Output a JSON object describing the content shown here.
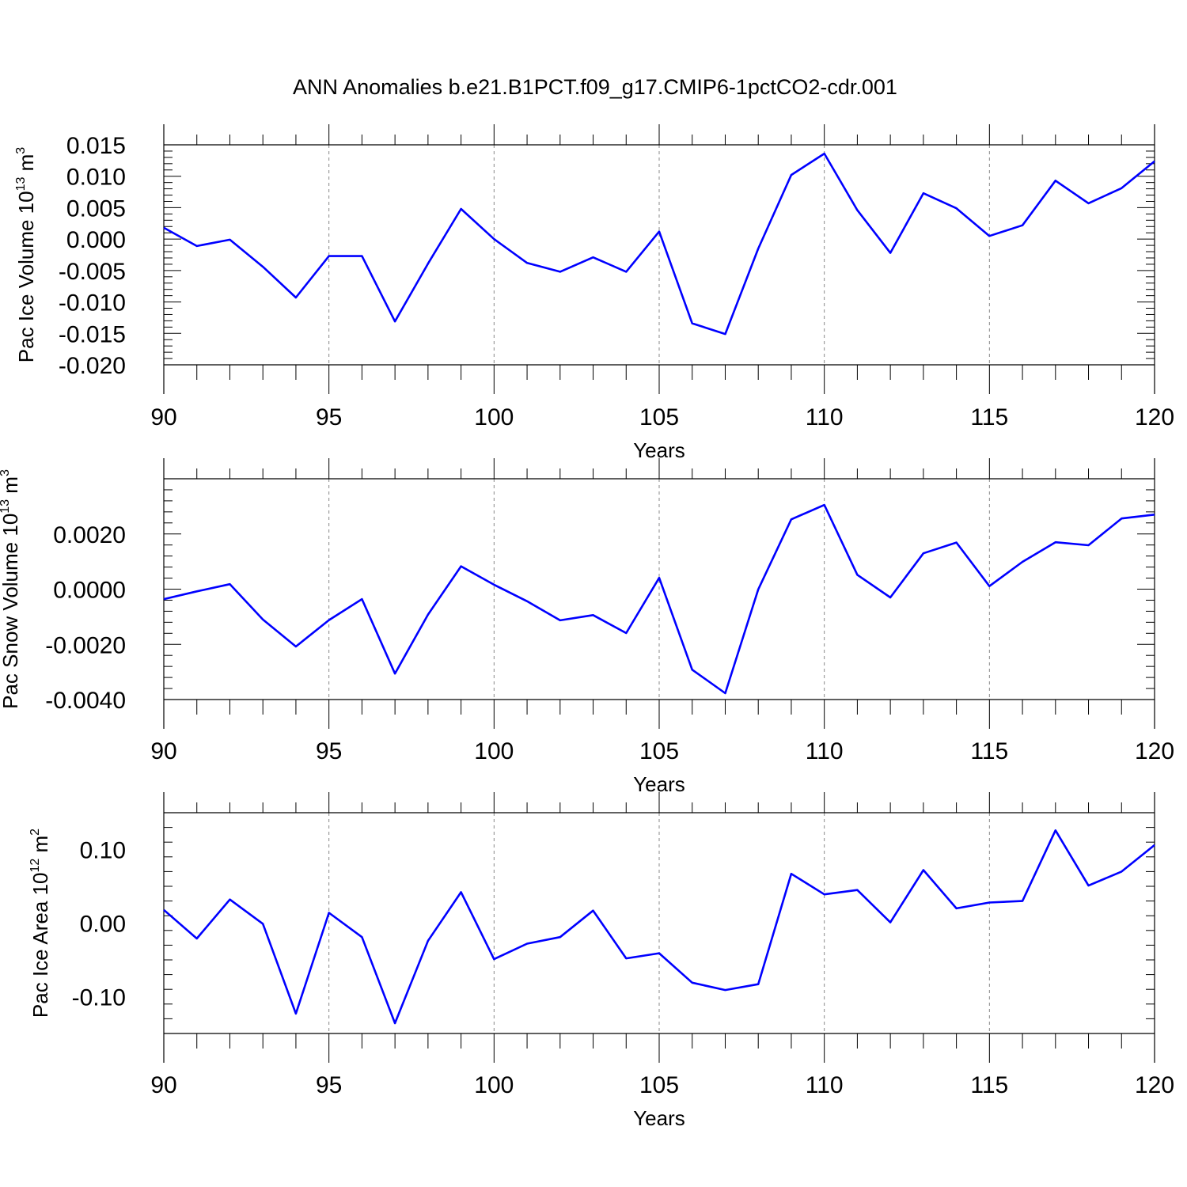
{
  "title": "ANN Anomalies b.e21.B1PCT.f09_g17.CMIP6-1pctCO2-cdr.001",
  "line_color": "#0000ff",
  "chart_data": [
    {
      "type": "line",
      "xlabel": "Years",
      "ylabel": {
        "text": "Pac Ice Volume 10",
        "exp": "13",
        "unit": " m",
        "unit_exp": "3"
      },
      "xlim": [
        90,
        120
      ],
      "ylim": [
        -0.02,
        0.015
      ],
      "x_ticks": [
        "90",
        "95",
        "100",
        "105",
        "110",
        "115",
        "120"
      ],
      "y_ticks": [
        {
          "v": 0.015,
          "label": "0.015"
        },
        {
          "v": 0.01,
          "label": "0.010"
        },
        {
          "v": 0.005,
          "label": "0.005"
        },
        {
          "v": 0.0,
          "label": "0.000"
        },
        {
          "v": -0.005,
          "label": "-0.005"
        },
        {
          "v": -0.01,
          "label": "-0.010"
        },
        {
          "v": -0.015,
          "label": "-0.015"
        },
        {
          "v": -0.02,
          "label": "-0.020"
        }
      ],
      "x": [
        90,
        91,
        92,
        93,
        94,
        95,
        96,
        97,
        98,
        99,
        100,
        101,
        102,
        103,
        104,
        105,
        106,
        107,
        108,
        109,
        110,
        111,
        112,
        113,
        114,
        115,
        116,
        117,
        118,
        119,
        120
      ],
      "values": [
        0.0018,
        -0.0011,
        -0.0001,
        -0.0044,
        -0.0093,
        -0.0027,
        -0.0027,
        -0.0131,
        -0.0039,
        0.0048,
        0.0,
        -0.0038,
        -0.0052,
        -0.0029,
        -0.0052,
        0.0012,
        -0.0134,
        -0.0151,
        -0.0015,
        0.0102,
        0.0136,
        0.0046,
        -0.0022,
        0.0073,
        0.0049,
        0.0005,
        0.0022,
        0.0093,
        0.0057,
        0.0081,
        0.0124
      ]
    },
    {
      "type": "line",
      "xlabel": "Years",
      "ylabel": {
        "text": "Pac Snow Volume 10",
        "exp": "13",
        "unit": " m",
        "unit_exp": "3"
      },
      "xlim": [
        90,
        120
      ],
      "ylim": [
        -0.004,
        0.004
      ],
      "x_ticks": [
        "90",
        "95",
        "100",
        "105",
        "110",
        "115",
        "120"
      ],
      "y_ticks": [
        {
          "v": 0.002,
          "label": "0.0020"
        },
        {
          "v": 0.0,
          "label": "0.0000"
        },
        {
          "v": -0.002,
          "label": "-0.0020"
        },
        {
          "v": -0.004,
          "label": "-0.0040"
        }
      ],
      "x": [
        90,
        91,
        92,
        93,
        94,
        95,
        96,
        97,
        98,
        99,
        100,
        101,
        102,
        103,
        104,
        105,
        106,
        107,
        108,
        109,
        110,
        111,
        112,
        113,
        114,
        115,
        116,
        117,
        118,
        119,
        120
      ],
      "values": [
        -0.00036,
        -8e-05,
        0.00018,
        -0.0011,
        -0.00208,
        -0.00112,
        -0.00036,
        -0.00306,
        -0.00092,
        0.00083,
        0.00016,
        -0.00044,
        -0.00113,
        -0.00094,
        -0.00159,
        0.00041,
        -0.00292,
        -0.00377,
        -1e-05,
        0.00253,
        0.00305,
        0.00052,
        -0.0003,
        0.0013,
        0.00169,
        0.00011,
        0.00099,
        0.0017,
        0.00159,
        0.00256,
        0.0027
      ]
    },
    {
      "type": "line",
      "xlabel": "Years",
      "ylabel": {
        "text": "Pac Ice Area 10",
        "exp": "12",
        "unit": " m",
        "unit_exp": "2"
      },
      "xlim": [
        90,
        120
      ],
      "ylim": [
        -0.15,
        0.15
      ],
      "x_ticks": [
        "90",
        "95",
        "100",
        "105",
        "110",
        "115",
        "120"
      ],
      "y_ticks": [
        {
          "v": 0.1,
          "label": "0.10"
        },
        {
          "v": 0.0,
          "label": "0.00"
        },
        {
          "v": -0.1,
          "label": "-0.10"
        }
      ],
      "x": [
        90,
        91,
        92,
        93,
        94,
        95,
        96,
        97,
        98,
        99,
        100,
        101,
        102,
        103,
        104,
        105,
        106,
        107,
        108,
        109,
        110,
        111,
        112,
        113,
        114,
        115,
        116,
        117,
        118,
        119,
        120
      ],
      "values": [
        0.018,
        -0.021,
        0.032,
        -0.001,
        -0.123,
        0.014,
        -0.019,
        -0.136,
        -0.024,
        0.042,
        -0.049,
        -0.028,
        -0.019,
        0.017,
        -0.048,
        -0.041,
        -0.081,
        -0.091,
        -0.083,
        0.067,
        0.039,
        0.045,
        0.001,
        0.072,
        0.02,
        0.028,
        0.03,
        0.126,
        0.051,
        0.07,
        0.106
      ]
    }
  ]
}
